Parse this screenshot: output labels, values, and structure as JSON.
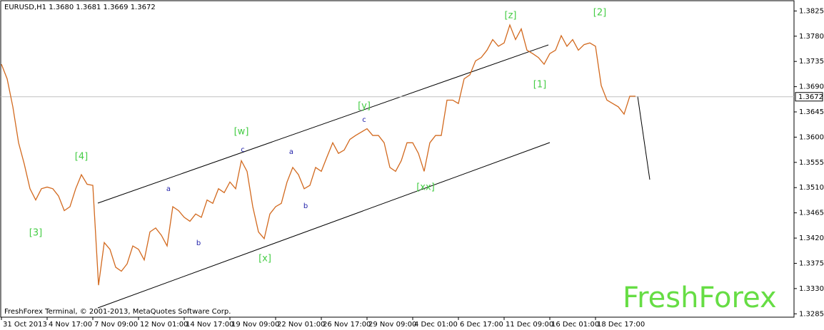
{
  "chart_data": {
    "type": "line",
    "title": "EURUSD,H1  1.3680 1.3681 1.3669 1.3672",
    "footer": "FreshForex Terminal, © 2001-2013, MetaQuotes Software Corp.",
    "watermark": "FreshForex",
    "color": "#d2691e",
    "last_price": 1.3672,
    "categories": [
      "31 Oct 2013",
      null,
      null,
      null,
      null,
      null,
      null,
      null,
      "4 Nov 17:00",
      null,
      null,
      null,
      null,
      null,
      null,
      null,
      "7 Nov 09:00",
      null,
      null,
      null,
      null,
      null,
      null,
      null,
      "12 Nov 01:00",
      null,
      null,
      null,
      null,
      null,
      null,
      null,
      "14 Nov 17:00",
      null,
      null,
      null,
      null,
      null,
      null,
      null,
      "19 Nov 09:00",
      null,
      null,
      null,
      null,
      null,
      null,
      null,
      "22 Nov 01:00",
      null,
      null,
      null,
      null,
      null,
      null,
      null,
      "26 Nov 17:00",
      null,
      null,
      null,
      null,
      null,
      null,
      null,
      "29 Nov 09:00",
      null,
      null,
      null,
      null,
      null,
      null,
      null,
      "4 Dec 01:00",
      null,
      null,
      null,
      null,
      null,
      null,
      null,
      "6 Dec 17:00",
      null,
      null,
      null,
      null,
      null,
      null,
      null,
      "11 Dec 09:00",
      null,
      null,
      null,
      null,
      null,
      null,
      null,
      "16 Dec 01:00",
      null,
      null,
      null,
      null,
      null,
      null,
      null,
      "18 Dec 17:00",
      null,
      null,
      null,
      null,
      null,
      null,
      null
    ],
    "values": [
      1.373,
      1.3704,
      1.3654,
      1.359,
      1.3552,
      1.3508,
      1.3488,
      1.3508,
      1.3511,
      1.3508,
      1.3495,
      1.3469,
      1.3476,
      1.3508,
      1.3533,
      1.3516,
      1.3514,
      1.3336,
      1.3412,
      1.34,
      1.3368,
      1.3361,
      1.3374,
      1.3406,
      1.34,
      1.3381,
      1.3431,
      1.3438,
      1.3425,
      1.3406,
      1.3476,
      1.3469,
      1.3457,
      1.345,
      1.3463,
      1.3457,
      1.3488,
      1.3482,
      1.3508,
      1.3501,
      1.352,
      1.3508,
      1.3558,
      1.3539,
      1.3476,
      1.3431,
      1.3419,
      1.3463,
      1.3476,
      1.3482,
      1.352,
      1.3546,
      1.3533,
      1.3508,
      1.3514,
      1.3546,
      1.3539,
      1.3565,
      1.359,
      1.3571,
      1.3577,
      1.3596,
      1.3603,
      1.3609,
      1.3615,
      1.3603,
      1.3603,
      1.359,
      1.3546,
      1.3539,
      1.3558,
      1.359,
      1.359,
      1.3571,
      1.3539,
      1.359,
      1.3603,
      1.3603,
      1.3666,
      1.3666,
      1.366,
      1.3704,
      1.3711,
      1.3736,
      1.3742,
      1.3755,
      1.3774,
      1.3762,
      1.3768,
      1.38,
      1.3774,
      1.3793,
      1.3755,
      1.3749,
      1.3742,
      1.373,
      1.3749,
      1.3755,
      1.3781,
      1.3762,
      1.3774,
      1.3755,
      1.3765,
      1.3768,
      1.3762,
      1.3692,
      1.3666,
      1.366,
      1.3654,
      1.3641,
      1.3673,
      1.3673
    ],
    "ylim": [
      1.3279,
      1.3842
    ],
    "yticks": [
      1.3825,
      {
        "value": 1.378,
        "label": "1.3780"
      },
      1.3735,
      {
        "value": 1.369,
        "label": "1.3690"
      },
      1.3645,
      {
        "value": 1.36,
        "label": "1.3600"
      },
      1.3555,
      {
        "value": 1.351,
        "label": "1.3510"
      },
      1.3465,
      {
        "value": 1.342,
        "label": "1.3420"
      },
      1.3375,
      {
        "value": 1.333,
        "label": "1.3330"
      },
      1.3285
    ],
    "annotations": [
      "[4]",
      "[3]",
      "[w]",
      "c",
      "a",
      "b",
      "[x]",
      "a",
      "b",
      "[y]",
      "c",
      "[xx]",
      "[z]",
      "[2]",
      "[1]"
    ]
  }
}
